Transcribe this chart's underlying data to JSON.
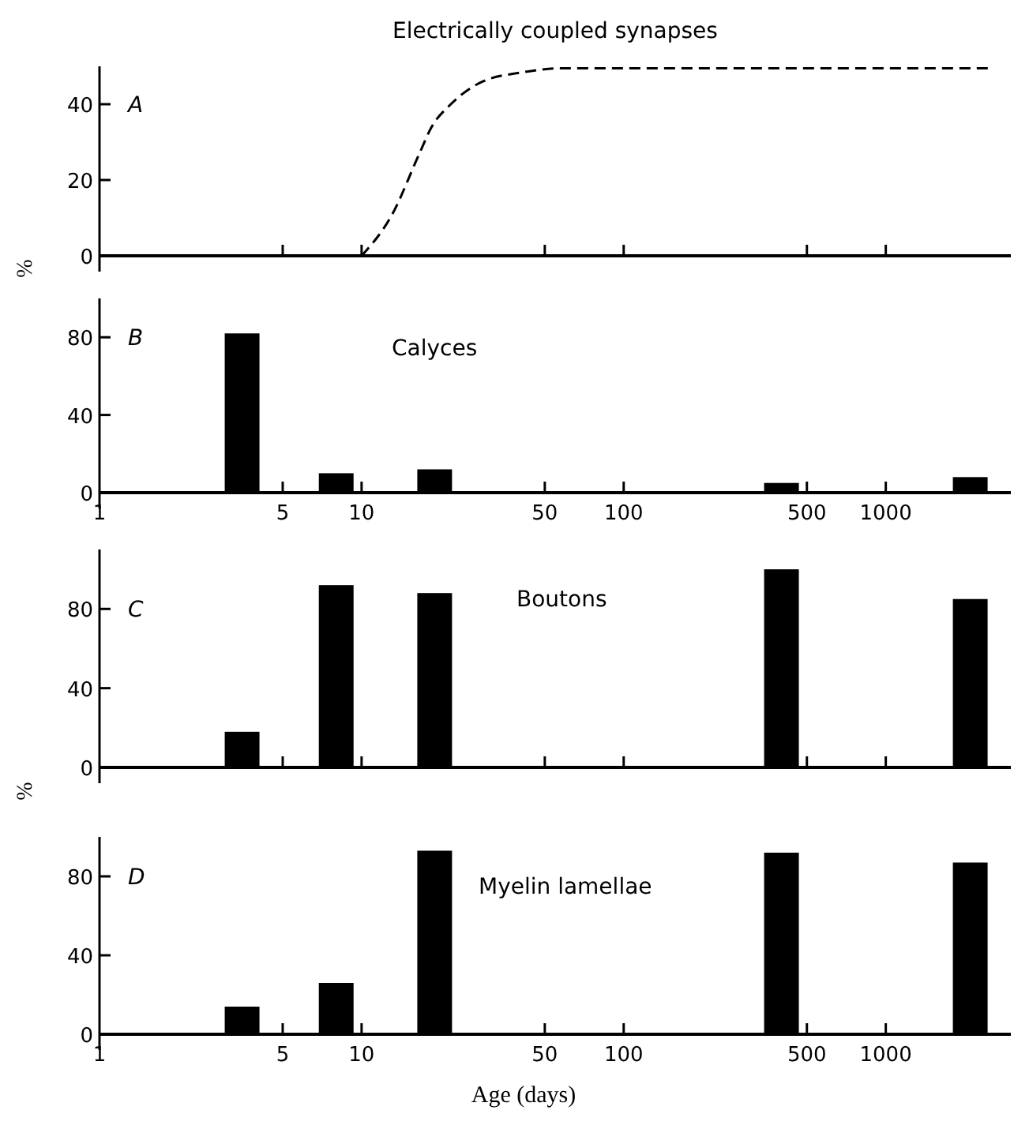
{
  "chart_data": [
    {
      "type": "line",
      "title": "Electrically coupled synapses",
      "ylabel": "%",
      "annotations": [
        "A"
      ],
      "x": [
        10,
        13.1,
        16.5,
        18.5,
        21.9,
        29,
        41,
        58,
        2450
      ],
      "values": [
        0,
        11,
        26.5,
        34,
        40,
        46,
        48.4,
        49.5,
        49.5
      ],
      "color": "#000000",
      "line_style": "dashed",
      "log": "x",
      "xlim": [
        1,
        3000
      ],
      "xticks": [
        1,
        5,
        10,
        50,
        100,
        500,
        1000
      ],
      "ylim": [
        0,
        50
      ],
      "yticks": [
        0,
        20,
        40
      ],
      "tick_labels": "y"
    },
    {
      "type": "bar",
      "title": "Calyces",
      "annotations": [
        "B"
      ],
      "x": [
        3.5,
        8,
        19,
        400,
        2100
      ],
      "values": [
        82,
        10,
        12,
        5,
        8
      ],
      "color": "#000000",
      "log": "x",
      "xlim": [
        1,
        3000
      ],
      "xticks": [
        1,
        5,
        10,
        50,
        100,
        500,
        1000
      ],
      "ylim": [
        0,
        100
      ],
      "yticks": [
        0,
        40,
        80
      ]
    },
    {
      "type": "bar",
      "title": "Boutons",
      "ylabel": "%",
      "annotations": [
        "C"
      ],
      "x": [
        3.5,
        8,
        19,
        400,
        2100
      ],
      "values": [
        18,
        92,
        88,
        100,
        85
      ],
      "color": "#000000",
      "log": "x",
      "xlim": [
        1,
        3000
      ],
      "xticks": [
        1,
        5,
        10,
        50,
        100,
        500,
        1000
      ],
      "ylim": [
        0,
        110
      ],
      "yticks": [
        0,
        40,
        80
      ],
      "tick_labels": "y"
    },
    {
      "type": "bar",
      "title": "Myelin lamellae",
      "xlabel": "Age (days)",
      "annotations": [
        "D"
      ],
      "x": [
        3.5,
        8,
        19,
        400,
        2100
      ],
      "values": [
        14,
        26,
        93,
        92,
        87
      ],
      "color": "#000000",
      "log": "x",
      "xlim": [
        1,
        3000
      ],
      "xticks": [
        1,
        5,
        10,
        50,
        100,
        500,
        1000
      ],
      "ylim": [
        0,
        100
      ],
      "yticks": [
        0,
        40,
        80
      ]
    }
  ]
}
